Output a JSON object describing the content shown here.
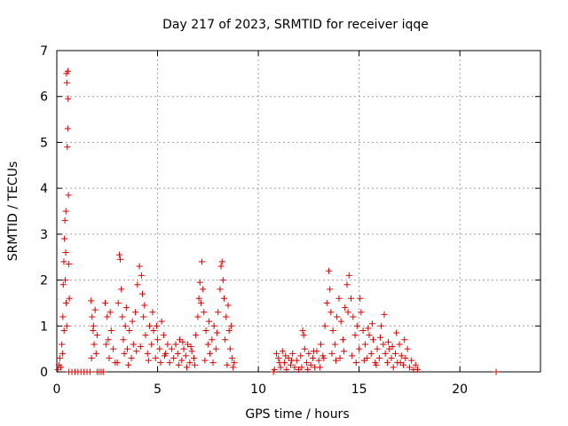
{
  "chart_data": {
    "type": "scatter",
    "title": "Day 217 of 2023, SRMTID for receiver iqqe",
    "xlabel": "GPS time / hours",
    "ylabel": "SRMTID / TECUs",
    "xlim": [
      0,
      24
    ],
    "ylim": [
      0,
      7
    ],
    "xticks": [
      0,
      5,
      10,
      15,
      20
    ],
    "yticks": [
      0,
      1,
      2,
      3,
      4,
      5,
      6,
      7
    ],
    "grid": true,
    "marker": "+",
    "color": "#e00000",
    "series": [
      {
        "name": "SRMTID",
        "points": [
          [
            0.05,
            0.05
          ],
          [
            0.1,
            0.15
          ],
          [
            0.15,
            0.3
          ],
          [
            0.2,
            0.1
          ],
          [
            0.25,
            0.6
          ],
          [
            0.3,
            1.2
          ],
          [
            0.32,
            1.9
          ],
          [
            0.35,
            2.4
          ],
          [
            0.38,
            2.9
          ],
          [
            0.4,
            3.3
          ],
          [
            0.42,
            2.0
          ],
          [
            0.45,
            3.5
          ],
          [
            0.48,
            6.5
          ],
          [
            0.5,
            6.3
          ],
          [
            0.52,
            4.9
          ],
          [
            0.54,
            5.3
          ],
          [
            0.56,
            5.95
          ],
          [
            0.58,
            3.85
          ],
          [
            0.6,
            2.35
          ],
          [
            0.55,
            6.55
          ],
          [
            0.46,
            1.5
          ],
          [
            0.36,
            0.9
          ],
          [
            0.28,
            0.4
          ],
          [
            0.44,
            2.6
          ],
          [
            0.5,
            1.0
          ],
          [
            0.62,
            1.6
          ],
          [
            0.6,
            0.0
          ],
          [
            0.75,
            0.0
          ],
          [
            0.9,
            0.0
          ],
          [
            1.05,
            0.0
          ],
          [
            1.2,
            0.0
          ],
          [
            1.35,
            0.0
          ],
          [
            1.5,
            0.0
          ],
          [
            1.65,
            0.0
          ],
          [
            2.0,
            0.0
          ],
          [
            2.1,
            0.0
          ],
          [
            2.2,
            0.0
          ],
          [
            2.3,
            0.0
          ],
          [
            1.7,
            1.55
          ],
          [
            1.75,
            1.2
          ],
          [
            1.8,
            0.9
          ],
          [
            1.85,
            0.6
          ],
          [
            1.9,
            1.35
          ],
          [
            1.95,
            0.4
          ],
          [
            2.0,
            0.8
          ],
          [
            1.72,
            0.3
          ],
          [
            1.82,
            1.0
          ],
          [
            2.4,
            1.5
          ],
          [
            2.5,
            1.2
          ],
          [
            2.55,
            0.7
          ],
          [
            2.6,
            0.3
          ],
          [
            2.7,
            0.9
          ],
          [
            2.8,
            0.5
          ],
          [
            2.9,
            0.2
          ],
          [
            2.65,
            1.3
          ],
          [
            2.45,
            0.6
          ],
          [
            3.0,
            0.2
          ],
          [
            3.05,
            1.5
          ],
          [
            3.1,
            2.55
          ],
          [
            3.15,
            2.45
          ],
          [
            3.2,
            1.8
          ],
          [
            3.25,
            1.2
          ],
          [
            3.3,
            0.7
          ],
          [
            3.4,
            1.0
          ],
          [
            3.5,
            0.5
          ],
          [
            3.6,
            0.9
          ],
          [
            3.7,
            0.3
          ],
          [
            3.8,
            0.6
          ],
          [
            3.9,
            1.3
          ],
          [
            4.0,
            1.9
          ],
          [
            4.1,
            2.3
          ],
          [
            4.2,
            2.1
          ],
          [
            4.25,
            1.7
          ],
          [
            4.3,
            1.2
          ],
          [
            4.4,
            0.8
          ],
          [
            4.5,
            0.4
          ],
          [
            4.6,
            1.0
          ],
          [
            4.7,
            0.6
          ],
          [
            4.8,
            0.9
          ],
          [
            4.9,
            0.3
          ],
          [
            5.0,
            0.7
          ],
          [
            5.1,
            0.5
          ],
          [
            5.2,
            1.1
          ],
          [
            5.3,
            0.8
          ],
          [
            5.4,
            0.4
          ],
          [
            5.5,
            0.6
          ],
          [
            5.6,
            0.2
          ],
          [
            3.35,
            0.4
          ],
          [
            3.45,
            1.4
          ],
          [
            3.55,
            0.15
          ],
          [
            3.75,
            1.1
          ],
          [
            3.95,
            0.45
          ],
          [
            4.15,
            0.55
          ],
          [
            4.35,
            1.45
          ],
          [
            4.55,
            0.25
          ],
          [
            4.75,
            1.3
          ],
          [
            4.95,
            1.0
          ],
          [
            5.15,
            0.2
          ],
          [
            5.35,
            0.35
          ],
          [
            5.7,
            0.5
          ],
          [
            5.8,
            0.3
          ],
          [
            5.9,
            0.6
          ],
          [
            6.0,
            0.4
          ],
          [
            6.1,
            0.7
          ],
          [
            6.2,
            0.25
          ],
          [
            6.3,
            0.5
          ],
          [
            6.4,
            0.35
          ],
          [
            6.5,
            0.6
          ],
          [
            6.6,
            0.2
          ],
          [
            6.7,
            0.45
          ],
          [
            6.8,
            0.3
          ],
          [
            6.9,
            0.8
          ],
          [
            7.0,
            1.2
          ],
          [
            7.05,
            1.6
          ],
          [
            7.1,
            1.95
          ],
          [
            7.15,
            1.5
          ],
          [
            7.2,
            2.4
          ],
          [
            7.25,
            1.8
          ],
          [
            7.3,
            1.3
          ],
          [
            7.4,
            0.9
          ],
          [
            7.5,
            0.6
          ],
          [
            7.6,
            0.4
          ],
          [
            7.7,
            0.7
          ],
          [
            7.8,
            1.0
          ],
          [
            7.9,
            0.5
          ],
          [
            8.0,
            1.3
          ],
          [
            8.1,
            1.8
          ],
          [
            8.15,
            2.3
          ],
          [
            8.2,
            2.4
          ],
          [
            8.25,
            2.0
          ],
          [
            8.3,
            1.6
          ],
          [
            8.4,
            1.2
          ],
          [
            8.5,
            1.45
          ],
          [
            8.55,
            0.9
          ],
          [
            8.6,
            0.5
          ],
          [
            8.7,
            0.3
          ],
          [
            8.75,
            0.1
          ],
          [
            8.8,
            0.2
          ],
          [
            6.05,
            0.15
          ],
          [
            6.25,
            0.65
          ],
          [
            6.45,
            0.1
          ],
          [
            6.65,
            0.55
          ],
          [
            6.85,
            0.15
          ],
          [
            7.35,
            0.25
          ],
          [
            7.55,
            1.1
          ],
          [
            7.75,
            0.2
          ],
          [
            7.95,
            0.85
          ],
          [
            8.35,
            0.7
          ],
          [
            8.45,
            0.15
          ],
          [
            8.65,
            1.0
          ],
          [
            10.75,
            0.0
          ],
          [
            10.8,
            0.05
          ],
          [
            10.9,
            0.4
          ],
          [
            11.0,
            0.3
          ],
          [
            11.1,
            0.1
          ],
          [
            11.2,
            0.45
          ],
          [
            11.3,
            0.2
          ],
          [
            11.4,
            0.05
          ],
          [
            11.5,
            0.3
          ],
          [
            11.6,
            0.15
          ],
          [
            11.7,
            0.4
          ],
          [
            11.8,
            0.1
          ],
          [
            11.9,
            0.25
          ],
          [
            12.0,
            0.05
          ],
          [
            12.1,
            0.35
          ],
          [
            12.2,
            0.9
          ],
          [
            12.25,
            0.8
          ],
          [
            12.3,
            0.5
          ],
          [
            12.4,
            0.2
          ],
          [
            12.5,
            0.4
          ],
          [
            12.6,
            0.15
          ],
          [
            12.7,
            0.3
          ],
          [
            12.8,
            0.1
          ],
          [
            12.9,
            0.45
          ],
          [
            13.0,
            0.25
          ],
          [
            13.1,
            0.6
          ],
          [
            13.2,
            0.35
          ],
          [
            13.3,
            1.0
          ],
          [
            13.4,
            1.5
          ],
          [
            13.5,
            2.2
          ],
          [
            13.55,
            1.8
          ],
          [
            13.6,
            1.3
          ],
          [
            13.7,
            0.9
          ],
          [
            13.8,
            0.6
          ],
          [
            13.9,
            1.2
          ],
          [
            14.0,
            1.6
          ],
          [
            14.1,
            1.1
          ],
          [
            14.2,
            0.7
          ],
          [
            14.3,
            1.4
          ],
          [
            14.4,
            1.9
          ],
          [
            14.5,
            2.1
          ],
          [
            14.6,
            1.6
          ],
          [
            14.7,
            1.2
          ],
          [
            14.8,
            0.8
          ],
          [
            14.9,
            1.0
          ],
          [
            15.0,
            0.5
          ],
          [
            15.1,
            1.3
          ],
          [
            15.2,
            0.9
          ],
          [
            15.3,
            0.6
          ],
          [
            15.4,
            0.3
          ],
          [
            15.5,
            0.8
          ],
          [
            15.6,
            0.4
          ],
          [
            15.7,
            0.7
          ],
          [
            15.8,
            0.2
          ],
          [
            15.9,
            0.5
          ],
          [
            16.0,
            0.3
          ],
          [
            16.1,
            1.0
          ],
          [
            16.2,
            0.6
          ],
          [
            16.3,
            0.4
          ],
          [
            16.4,
            0.2
          ],
          [
            16.5,
            0.5
          ],
          [
            16.6,
            0.3
          ],
          [
            16.7,
            0.1
          ],
          [
            16.8,
            0.4
          ],
          [
            16.9,
            0.2
          ],
          [
            17.0,
            0.6
          ],
          [
            17.1,
            0.35
          ],
          [
            17.2,
            0.15
          ],
          [
            17.3,
            0.3
          ],
          [
            17.4,
            0.5
          ],
          [
            17.5,
            0.1
          ],
          [
            17.6,
            0.25
          ],
          [
            17.7,
            0.05
          ],
          [
            17.8,
            0.15
          ],
          [
            17.9,
            0.05
          ],
          [
            11.05,
            0.2
          ],
          [
            11.35,
            0.35
          ],
          [
            11.65,
            0.25
          ],
          [
            12.15,
            0.1
          ],
          [
            12.45,
            0.05
          ],
          [
            12.75,
            0.45
          ],
          [
            13.05,
            0.1
          ],
          [
            13.25,
            0.3
          ],
          [
            13.65,
            0.4
          ],
          [
            13.85,
            0.25
          ],
          [
            14.05,
            0.3
          ],
          [
            14.25,
            0.45
          ],
          [
            14.45,
            1.3
          ],
          [
            14.65,
            0.35
          ],
          [
            14.85,
            0.2
          ],
          [
            15.05,
            1.6
          ],
          [
            15.25,
            0.25
          ],
          [
            15.45,
            0.95
          ],
          [
            15.65,
            1.05
          ],
          [
            15.85,
            0.15
          ],
          [
            16.05,
            0.75
          ],
          [
            16.25,
            1.25
          ],
          [
            16.45,
            0.65
          ],
          [
            16.65,
            0.55
          ],
          [
            16.85,
            0.85
          ],
          [
            17.05,
            0.2
          ],
          [
            17.25,
            0.7
          ],
          [
            21.8,
            0.0
          ]
        ]
      }
    ]
  }
}
